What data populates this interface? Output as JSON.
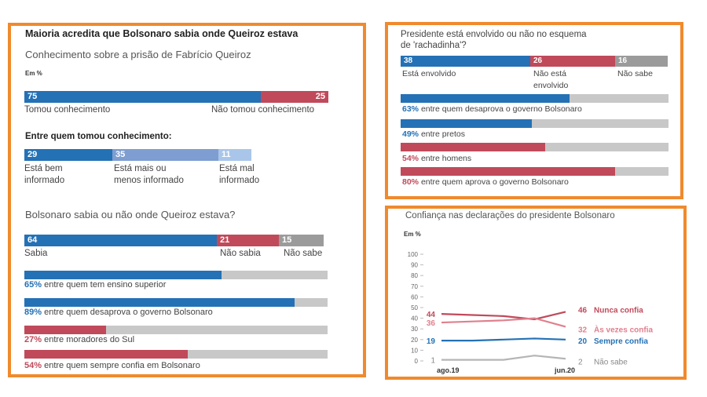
{
  "colors": {
    "blue": "#2471b5",
    "red": "#c04a5a",
    "gray": "#9b9b9b",
    "lightblue": "#7e9dd0",
    "paleblue": "#a9c6ea",
    "track": "#c8c8c8",
    "pink": "#e0808e",
    "lightgray": "#b5b5b5",
    "border": "#f08a2c"
  },
  "left": {
    "title": "Maioria acredita que Bolsonaro sabia onde Queiroz estava",
    "subtitle": "Conhecimento sobre a prisão de Fabrício Queiroz",
    "unit": "Em %",
    "knowledge": {
      "segments": [
        {
          "value": "75",
          "label": "Tomou conhecimento"
        },
        {
          "value": "25",
          "label": "Não tomou conhecimento"
        }
      ]
    },
    "among_heading": "Entre quem tomou conhecimento:",
    "informed": {
      "segments": [
        {
          "value": "29",
          "label1": "Está bem",
          "label2": "informado"
        },
        {
          "value": "35",
          "label1": "Está mais ou",
          "label2": "menos informado"
        },
        {
          "value": "11",
          "label1": "Está mal",
          "label2": "informado"
        }
      ]
    },
    "question": "Bolsonaro sabia ou não onde Queiroz estava?",
    "knew": {
      "segments": [
        {
          "value": "64",
          "label": "Sabia"
        },
        {
          "value": "21",
          "label": "Não sabia"
        },
        {
          "value": "15",
          "label": "Não sabe"
        }
      ]
    },
    "breakdown": [
      {
        "pct": "65%",
        "text": "entre quem tem ensino superior",
        "value": 65,
        "color": "blue"
      },
      {
        "pct": "89%",
        "text": "entre quem desaprova o governo Bolsonaro",
        "value": 89,
        "color": "blue"
      },
      {
        "pct": "27%",
        "text": "entre moradores do Sul",
        "value": 27,
        "color": "red"
      },
      {
        "pct": "54%",
        "text": "entre quem sempre confia em Bolsonaro",
        "value": 54,
        "color": "red"
      }
    ]
  },
  "topright": {
    "title1": "Presidente está envolvido ou não no esquema",
    "title2": "de 'rachadinha'?",
    "segments": [
      {
        "value": "38",
        "label1": "Está envolvido",
        "label2": ""
      },
      {
        "value": "26",
        "label1": "Não está",
        "label2": "envolvido"
      },
      {
        "value": "16",
        "label1": "Não sabe",
        "label2": ""
      }
    ],
    "breakdown": [
      {
        "pct": "63%",
        "text": "entre quem desaprova o governo Bolsonaro",
        "value": 63,
        "color": "blue"
      },
      {
        "pct": "49%",
        "text": "entre pretos",
        "value": 49,
        "color": "blue"
      },
      {
        "pct": "54%",
        "text": "entre homens",
        "value": 54,
        "color": "red"
      },
      {
        "pct": "80%",
        "text": "entre quem aprova o governo Bolsonaro",
        "value": 80,
        "color": "red"
      }
    ]
  },
  "chart_data": {
    "type": "line",
    "title": "Confiança nas declarações do presidente Bolsonaro",
    "ylabel": "Em %",
    "ylim": [
      0,
      100
    ],
    "yticks": [
      "0",
      "10",
      "20",
      "30",
      "40",
      "50",
      "60",
      "70",
      "80",
      "90",
      "100"
    ],
    "x_labels": [
      "ago.19",
      "jun.20"
    ],
    "x": [
      0,
      1,
      2,
      3,
      4
    ],
    "series": [
      {
        "name": "Nunca confia",
        "values": [
          44,
          43,
          42,
          39,
          46
        ],
        "start_label": "44",
        "end_label": "46",
        "color": "#c04a5a"
      },
      {
        "name": "Às vezes confia",
        "values": [
          36,
          37,
          38,
          40,
          32
        ],
        "start_label": "36",
        "end_label": "32",
        "color": "#e0808e"
      },
      {
        "name": "Sempre confia",
        "values": [
          19,
          19,
          20,
          21,
          20
        ],
        "start_label": "19",
        "end_label": "20",
        "color": "#2471b5"
      },
      {
        "name": "Não sabe",
        "values": [
          1,
          1,
          1,
          5,
          2
        ],
        "start_label": "1",
        "end_label": "2",
        "color": "#b5b5b5"
      }
    ]
  }
}
